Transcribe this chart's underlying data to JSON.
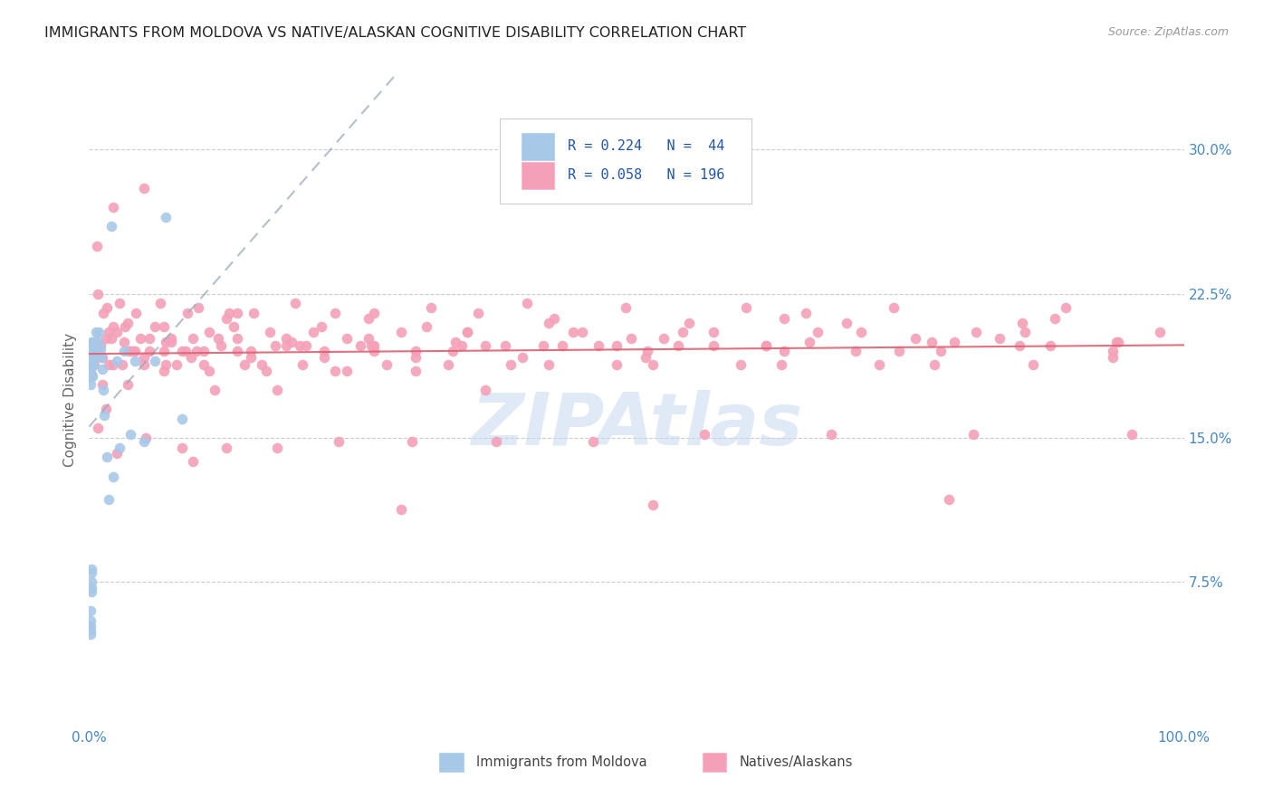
{
  "title": "IMMIGRANTS FROM MOLDOVA VS NATIVE/ALASKAN COGNITIVE DISABILITY CORRELATION CHART",
  "source": "Source: ZipAtlas.com",
  "ylabel": "Cognitive Disability",
  "yticks": [
    "7.5%",
    "15.0%",
    "22.5%",
    "30.0%"
  ],
  "ytick_vals": [
    0.075,
    0.15,
    0.225,
    0.3
  ],
  "xlim": [
    0.0,
    1.0
  ],
  "ylim": [
    0.0,
    0.34
  ],
  "color_blue": "#a8c8e8",
  "color_pink": "#f4a0b8",
  "color_blue_line": "#7799bb",
  "color_pink_line": "#e06070",
  "color_title": "#333333",
  "watermark_color": "#c8d8f0",
  "blue_x": [
    0.001,
    0.001,
    0.001,
    0.001,
    0.001,
    0.002,
    0.002,
    0.002,
    0.002,
    0.002,
    0.003,
    0.003,
    0.003,
    0.003,
    0.004,
    0.004,
    0.004,
    0.005,
    0.005,
    0.006,
    0.006,
    0.007,
    0.007,
    0.008,
    0.008,
    0.009,
    0.01,
    0.011,
    0.012,
    0.013,
    0.014,
    0.016,
    0.018,
    0.02,
    0.022,
    0.025,
    0.028,
    0.032,
    0.038,
    0.042,
    0.05,
    0.06,
    0.07,
    0.085
  ],
  "blue_y": [
    0.195,
    0.19,
    0.185,
    0.182,
    0.178,
    0.2,
    0.196,
    0.192,
    0.188,
    0.183,
    0.198,
    0.194,
    0.188,
    0.182,
    0.2,
    0.195,
    0.188,
    0.2,
    0.195,
    0.205,
    0.198,
    0.2,
    0.193,
    0.2,
    0.193,
    0.205,
    0.196,
    0.192,
    0.186,
    0.175,
    0.162,
    0.14,
    0.118,
    0.26,
    0.13,
    0.19,
    0.145,
    0.195,
    0.152,
    0.19,
    0.148,
    0.19,
    0.265,
    0.16
  ],
  "blue_low_y": [
    0.06,
    0.055,
    0.05,
    0.048,
    0.052,
    0.08,
    0.072,
    0.07,
    0.082,
    0.075
  ],
  "blue_low_x": [
    0.001,
    0.001,
    0.001,
    0.001,
    0.001,
    0.002,
    0.002,
    0.002,
    0.002,
    0.002
  ],
  "pink_x": [
    0.005,
    0.007,
    0.008,
    0.01,
    0.012,
    0.013,
    0.015,
    0.016,
    0.018,
    0.02,
    0.022,
    0.025,
    0.028,
    0.03,
    0.033,
    0.036,
    0.04,
    0.043,
    0.047,
    0.05,
    0.055,
    0.06,
    0.065,
    0.07,
    0.075,
    0.08,
    0.085,
    0.09,
    0.095,
    0.1,
    0.105,
    0.11,
    0.115,
    0.12,
    0.128,
    0.135,
    0.142,
    0.15,
    0.158,
    0.165,
    0.172,
    0.18,
    0.188,
    0.195,
    0.205,
    0.215,
    0.225,
    0.235,
    0.248,
    0.26,
    0.272,
    0.285,
    0.298,
    0.312,
    0.328,
    0.345,
    0.362,
    0.38,
    0.4,
    0.42,
    0.442,
    0.465,
    0.49,
    0.515,
    0.542,
    0.57,
    0.6,
    0.632,
    0.665,
    0.7,
    0.735,
    0.772,
    0.81,
    0.85,
    0.892,
    0.935,
    0.978,
    0.008,
    0.015,
    0.025,
    0.038,
    0.052,
    0.068,
    0.085,
    0.105,
    0.125,
    0.148,
    0.172,
    0.198,
    0.228,
    0.26,
    0.295,
    0.332,
    0.372,
    0.415,
    0.46,
    0.51,
    0.562,
    0.618,
    0.678,
    0.74,
    0.808,
    0.878,
    0.952,
    0.012,
    0.022,
    0.035,
    0.05,
    0.068,
    0.088,
    0.11,
    0.135,
    0.162,
    0.192,
    0.225,
    0.26,
    0.298,
    0.34,
    0.385,
    0.432,
    0.482,
    0.538,
    0.595,
    0.658,
    0.722,
    0.79,
    0.862,
    0.938,
    0.018,
    0.032,
    0.05,
    0.07,
    0.093,
    0.118,
    0.148,
    0.18,
    0.215,
    0.255,
    0.298,
    0.345,
    0.396,
    0.45,
    0.508,
    0.57,
    0.635,
    0.705,
    0.778,
    0.855,
    0.935,
    0.022,
    0.042,
    0.068,
    0.098,
    0.132,
    0.17,
    0.212,
    0.258,
    0.308,
    0.362,
    0.42,
    0.482,
    0.548,
    0.618,
    0.692,
    0.77,
    0.852,
    0.94,
    0.035,
    0.075,
    0.125,
    0.185,
    0.255,
    0.335,
    0.425,
    0.525,
    0.635,
    0.755,
    0.882,
    0.055,
    0.135,
    0.235,
    0.355,
    0.495,
    0.655,
    0.832,
    0.095,
    0.285,
    0.515,
    0.785
  ],
  "pink_y": [
    0.188,
    0.25,
    0.225,
    0.198,
    0.178,
    0.215,
    0.202,
    0.218,
    0.205,
    0.202,
    0.188,
    0.205,
    0.22,
    0.188,
    0.208,
    0.195,
    0.195,
    0.215,
    0.202,
    0.188,
    0.195,
    0.208,
    0.22,
    0.188,
    0.202,
    0.188,
    0.195,
    0.215,
    0.202,
    0.218,
    0.188,
    0.205,
    0.175,
    0.198,
    0.215,
    0.202,
    0.188,
    0.215,
    0.188,
    0.205,
    0.175,
    0.198,
    0.22,
    0.188,
    0.205,
    0.195,
    0.215,
    0.185,
    0.198,
    0.215,
    0.188,
    0.205,
    0.195,
    0.218,
    0.188,
    0.205,
    0.175,
    0.198,
    0.22,
    0.188,
    0.205,
    0.198,
    0.218,
    0.188,
    0.205,
    0.198,
    0.218,
    0.188,
    0.205,
    0.195,
    0.218,
    0.188,
    0.205,
    0.198,
    0.218,
    0.192,
    0.205,
    0.155,
    0.165,
    0.142,
    0.195,
    0.15,
    0.195,
    0.145,
    0.195,
    0.145,
    0.195,
    0.145,
    0.198,
    0.148,
    0.195,
    0.148,
    0.195,
    0.148,
    0.198,
    0.148,
    0.195,
    0.152,
    0.198,
    0.152,
    0.195,
    0.152,
    0.198,
    0.152,
    0.192,
    0.27,
    0.178,
    0.28,
    0.185,
    0.195,
    0.185,
    0.195,
    0.185,
    0.198,
    0.185,
    0.198,
    0.185,
    0.198,
    0.188,
    0.198,
    0.188,
    0.198,
    0.188,
    0.2,
    0.188,
    0.2,
    0.188,
    0.2,
    0.188,
    0.2,
    0.192,
    0.2,
    0.192,
    0.202,
    0.192,
    0.202,
    0.192,
    0.202,
    0.192,
    0.205,
    0.192,
    0.205,
    0.192,
    0.205,
    0.195,
    0.205,
    0.195,
    0.205,
    0.195,
    0.208,
    0.195,
    0.208,
    0.195,
    0.208,
    0.198,
    0.208,
    0.198,
    0.208,
    0.198,
    0.21,
    0.198,
    0.21,
    0.198,
    0.21,
    0.2,
    0.21,
    0.2,
    0.21,
    0.2,
    0.212,
    0.2,
    0.212,
    0.2,
    0.212,
    0.202,
    0.212,
    0.202,
    0.212,
    0.202,
    0.215,
    0.202,
    0.215,
    0.202,
    0.215,
    0.202,
    0.138,
    0.113,
    0.115,
    0.118
  ]
}
